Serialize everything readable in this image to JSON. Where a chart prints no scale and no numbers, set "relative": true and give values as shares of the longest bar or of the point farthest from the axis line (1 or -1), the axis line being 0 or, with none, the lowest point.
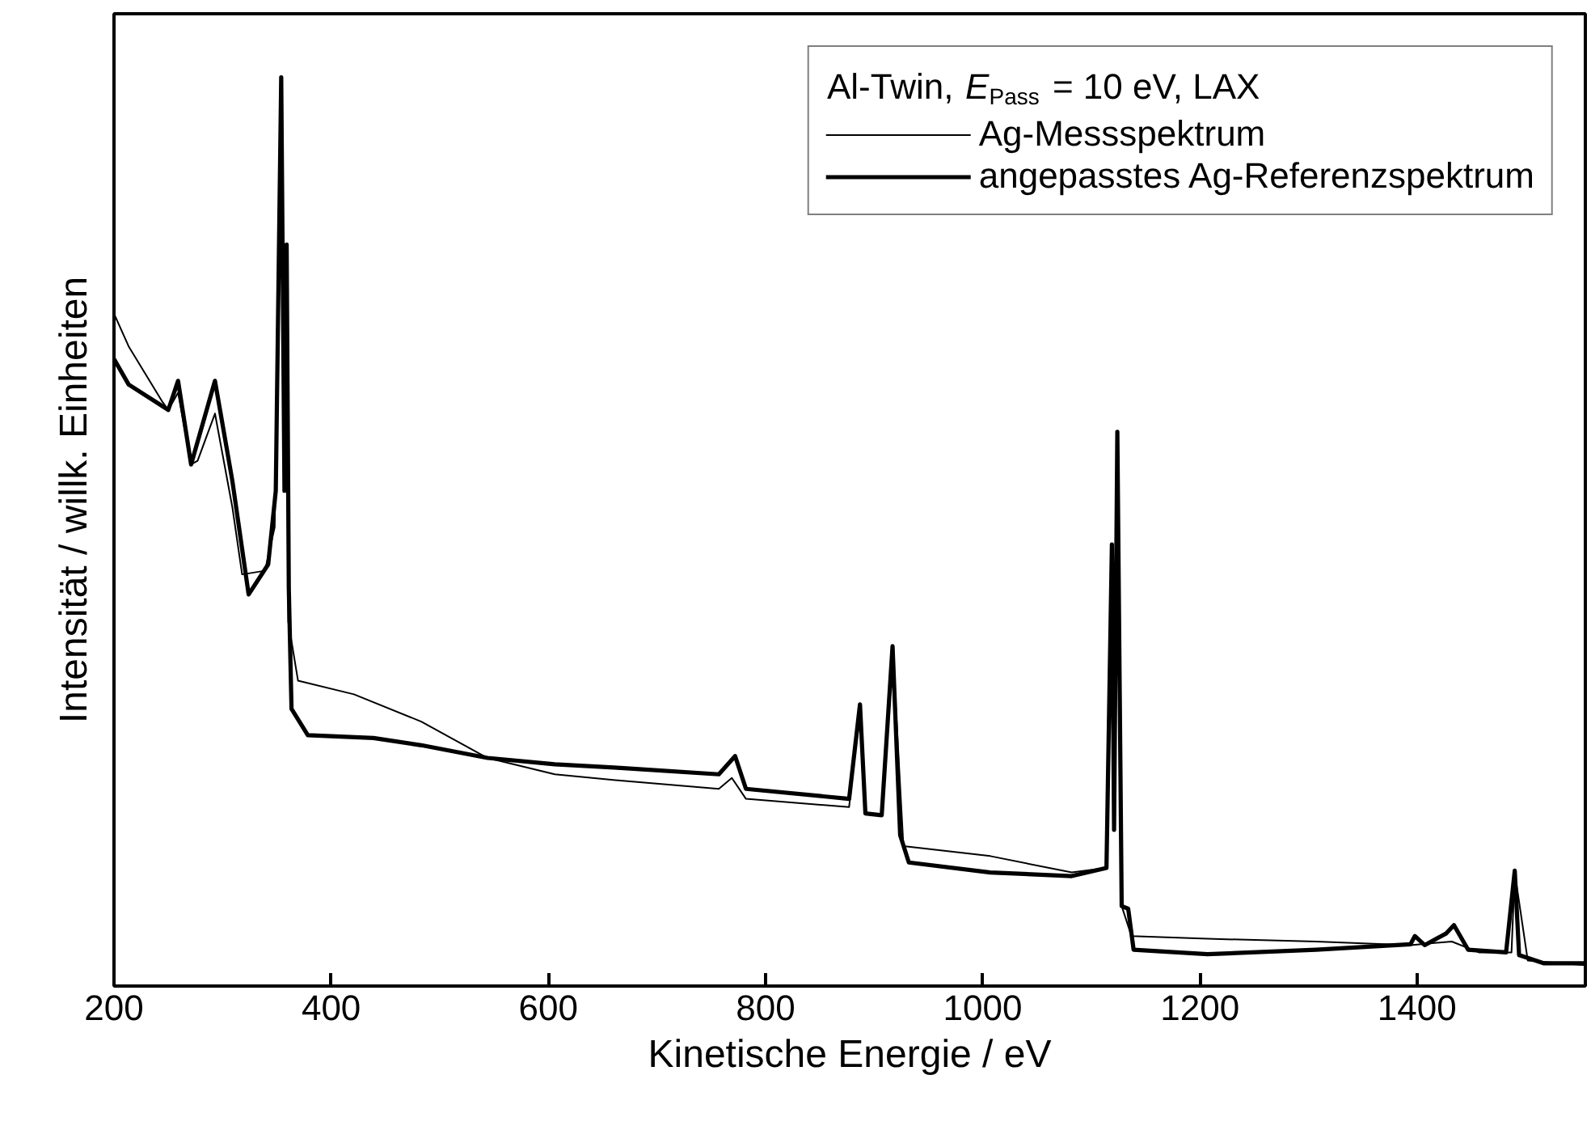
{
  "chart_data": {
    "type": "line",
    "relative": true,
    "xlabel": "Kinetische Energie / eV",
    "ylabel": "Intensität / willk. Einheiten",
    "legend_title": "Al-Twin, E$_{Pass}$ = 10 eV, LAX",
    "legend": "top right",
    "grid": false,
    "xlim": [
      200,
      1555
    ],
    "xticks": [
      200,
      400,
      600,
      800,
      1000,
      1200,
      1400
    ],
    "series": [
      {
        "name": "Ag-Messspektrum",
        "color": "#000000",
        "line_style": "solid",
        "x": [
          200,
          213.5,
          244,
          250,
          259,
          271,
          277,
          293,
          309,
          318,
          339,
          348,
          354,
          357,
          359,
          360.5,
          369.5,
          421,
          483,
          544,
          606,
          666.5,
          757,
          769,
          782,
          877,
          887,
          892,
          907,
          917,
          927,
          1007,
          1082,
          1114,
          1119,
          1121,
          1124,
          1128,
          1137,
          1207,
          1307,
          1394,
          1432,
          1457,
          1487,
          1490,
          1502,
          1555
        ],
        "values": [
          0.74,
          0.704,
          0.644,
          0.634,
          0.653,
          0.574,
          0.578,
          0.63,
          0.527,
          0.453,
          0.457,
          0.505,
          0.978,
          0.545,
          0.816,
          0.401,
          0.336,
          0.321,
          0.291,
          0.251,
          0.233,
          0.226,
          0.217,
          0.229,
          0.206,
          0.197,
          0.31,
          0.19,
          0.188,
          0.374,
          0.154,
          0.143,
          0.125,
          0.13,
          0.486,
          0.172,
          0.61,
          0.088,
          0.055,
          0.052,
          0.049,
          0.045,
          0.049,
          0.037,
          0.037,
          0.125,
          0.028,
          0.023
        ]
      },
      {
        "name": "angepasstes Ag-Referenzspektrum",
        "color": "#000000",
        "line_style": "solid",
        "x": [
          200,
          213.5,
          250,
          259,
          271,
          293,
          309,
          324,
          342,
          349,
          354,
          357,
          359,
          361,
          363.5,
          378.5,
          439,
          483,
          544,
          606,
          666.5,
          757,
          772,
          782,
          877,
          887,
          892,
          907,
          917,
          924,
          932,
          1007,
          1082,
          1114,
          1119,
          1121,
          1124,
          1128,
          1134,
          1139,
          1207,
          1307,
          1394,
          1398,
          1407,
          1427,
          1434,
          1447,
          1482,
          1490,
          1494,
          1502,
          1517,
          1555
        ],
        "values": [
          0.69,
          0.662,
          0.634,
          0.666,
          0.574,
          0.666,
          0.556,
          0.431,
          0.464,
          0.545,
          1.0,
          0.545,
          0.816,
          0.437,
          0.305,
          0.276,
          0.273,
          0.265,
          0.251,
          0.244,
          0.24,
          0.233,
          0.253,
          0.217,
          0.206,
          0.31,
          0.19,
          0.188,
          0.374,
          0.166,
          0.136,
          0.125,
          0.121,
          0.13,
          0.486,
          0.172,
          0.61,
          0.088,
          0.085,
          0.04,
          0.035,
          0.04,
          0.046,
          0.055,
          0.045,
          0.058,
          0.067,
          0.04,
          0.037,
          0.127,
          0.034,
          0.031,
          0.025,
          0.025
        ]
      }
    ]
  }
}
